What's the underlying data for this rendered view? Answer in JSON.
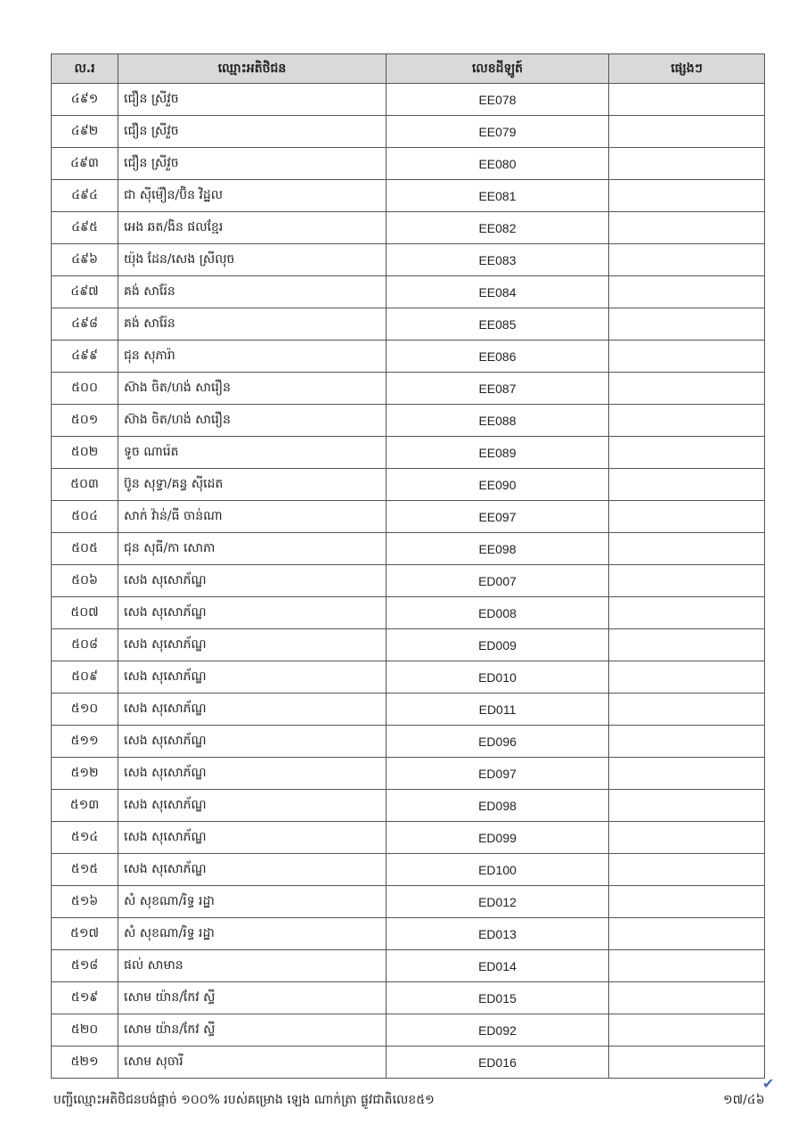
{
  "table": {
    "headers": [
      "ល.រ",
      "ឈ្មោះអតិថិជន",
      "លេខដីឡូត៍",
      "ផ្សេងៗ"
    ],
    "rows": [
      {
        "no": "៤៩១",
        "name": "ជឿន ស្រីវួច",
        "code": "EE078",
        "note": ""
      },
      {
        "no": "៤៩២",
        "name": "ជឿន ស្រីវួច",
        "code": "EE079",
        "note": ""
      },
      {
        "no": "៤៩៣",
        "name": "ជឿន ស្រីវួច",
        "code": "EE080",
        "note": ""
      },
      {
        "no": "៤៩៤",
        "name": "ជា ស៊ីម៉ឿន/ប៊ិន វិដ្ឋល",
        "code": "EE081",
        "note": ""
      },
      {
        "no": "៤៩៥",
        "name": "អេង ឆត/ងិន ផលខ្មែរ",
        "code": "EE082",
        "note": ""
      },
      {
        "no": "៤៩៦",
        "name": "យ៉ុង ដែន/សេង ស្រីលុច",
        "code": "EE083",
        "note": ""
      },
      {
        "no": "៤៩៧",
        "name": "គង់ សារ៉ែន",
        "code": "EE084",
        "note": ""
      },
      {
        "no": "៤៩៨",
        "name": "គង់ សារ៉ែន",
        "code": "EE085",
        "note": ""
      },
      {
        "no": "៤៩៩",
        "name": "ជុន សុភារ៉ា",
        "code": "EE086",
        "note": ""
      },
      {
        "no": "៥០០",
        "name": "ស៊ាង ចិត/ហង់ សារឿន",
        "code": "EE087",
        "note": ""
      },
      {
        "no": "៥០១",
        "name": "ស៊ាង ចិត/ហង់ សារឿន",
        "code": "EE088",
        "note": ""
      },
      {
        "no": "៥០២",
        "name": "ទូច ណារ៉េត",
        "code": "EE089",
        "note": ""
      },
      {
        "no": "៥០៣",
        "name": "ប៊ូន សុទ្ធា/គន្ធ ស៊ីដេត",
        "code": "EE090",
        "note": ""
      },
      {
        "no": "៥០៤",
        "name": "សាក់ វ៉ាន់/ធី ចាន់ណា",
        "code": "EE097",
        "note": ""
      },
      {
        "no": "៥០៥",
        "name": "ជុន សុធី/កា សោភា",
        "code": "EE098",
        "note": ""
      },
      {
        "no": "៥០៦",
        "name": "សេង សុសោភ័ណ្ឌ",
        "code": "ED007",
        "note": ""
      },
      {
        "no": "៥០៧",
        "name": "សេង សុសោភ័ណ្ឌ",
        "code": "ED008",
        "note": ""
      },
      {
        "no": "៥០៨",
        "name": "សេង សុសោភ័ណ្ឌ",
        "code": "ED009",
        "note": ""
      },
      {
        "no": "៥០៩",
        "name": "សេង សុសោភ័ណ្ឌ",
        "code": "ED010",
        "note": ""
      },
      {
        "no": "៥១០",
        "name": "សេង សុសោភ័ណ្ឌ",
        "code": "ED011",
        "note": ""
      },
      {
        "no": "៥១១",
        "name": "សេង សុសោភ័ណ្ឌ",
        "code": "ED096",
        "note": ""
      },
      {
        "no": "៥១២",
        "name": "សេង សុសោភ័ណ្ឌ",
        "code": "ED097",
        "note": ""
      },
      {
        "no": "៥១៣",
        "name": "សេង សុសោភ័ណ្ឌ",
        "code": "ED098",
        "note": ""
      },
      {
        "no": "៥១៤",
        "name": "សេង សុសោភ័ណ្ឌ",
        "code": "ED099",
        "note": ""
      },
      {
        "no": "៥១៥",
        "name": "សេង សុសោភ័ណ្ឌ",
        "code": "ED100",
        "note": ""
      },
      {
        "no": "៥១៦",
        "name": "សំ សុខណា/រិទ្ធ រដ្ឋា",
        "code": "ED012",
        "note": ""
      },
      {
        "no": "៥១៧",
        "name": "សំ សុខណា/រិទ្ធ រដ្ឋា",
        "code": "ED013",
        "note": ""
      },
      {
        "no": "៥១៨",
        "name": "ផល់ សាមាន",
        "code": "ED014",
        "note": ""
      },
      {
        "no": "៥១៩",
        "name": "សោម យ៉ាន/កែវ ស្ទី",
        "code": "ED015",
        "note": ""
      },
      {
        "no": "៥២០",
        "name": "សោម យ៉ាន/កែវ ស្ទី",
        "code": "ED092",
        "note": ""
      },
      {
        "no": "៥២១",
        "name": "សោម សុចារី",
        "code": "ED016",
        "note": ""
      }
    ]
  },
  "footer": {
    "title": "បញ្ជីឈ្មោះអតិថិជនបង់ផ្តាច់ ១០០% របស់គម្រោង ឡេង ណាក់ត្រា ផ្លូវជាតិលេខ៥១",
    "page": "១៧/៤៦"
  },
  "colors": {
    "header_bg": "#d9d9d9",
    "check_mark": "#3a66c8"
  },
  "icons": {
    "check": "check-mark-icon"
  }
}
